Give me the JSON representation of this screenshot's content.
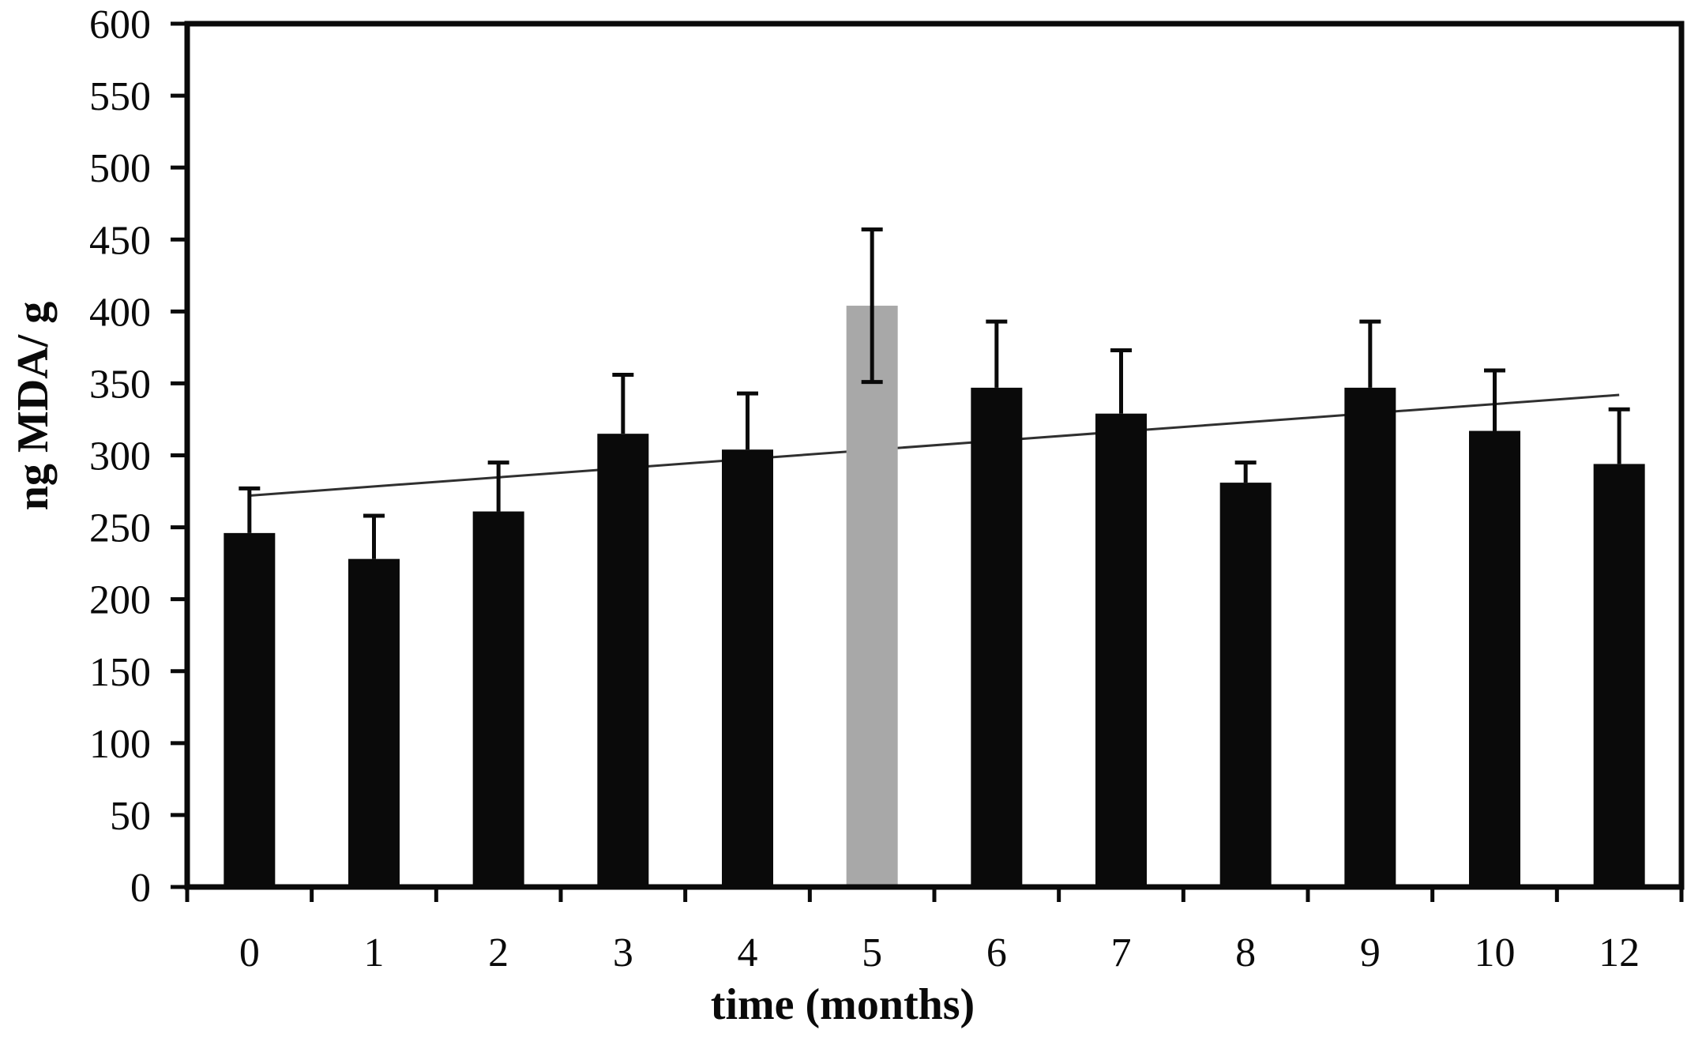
{
  "figure": {
    "background": "#ffffff"
  },
  "chart_data": {
    "type": "bar",
    "title": "",
    "xlabel": "time (months)",
    "ylabel": "ng MDA/ g",
    "categories": [
      "0",
      "1",
      "2",
      "3",
      "4",
      "5",
      "6",
      "7",
      "8",
      "9",
      "10",
      "12"
    ],
    "values": [
      246,
      228,
      261,
      315,
      304,
      404,
      347,
      329,
      281,
      347,
      317,
      294
    ],
    "errors": [
      31,
      30,
      34,
      41,
      39,
      53,
      46,
      44,
      14,
      46,
      42,
      38
    ],
    "bar_color": "#0a0a0a",
    "highlight": {
      "index": 5,
      "color": "#a8a8a8",
      "two_sided_error": true
    },
    "ylim": [
      0,
      600
    ],
    "ytick_step": 50,
    "ytick_labels": [
      "600",
      "550",
      "500",
      "450",
      "400",
      "350",
      "300",
      "250",
      "200",
      "150",
      "100",
      "50",
      "0"
    ],
    "grid": false,
    "legend": null,
    "trend_line": {
      "from_category_index": 0,
      "to_category_index": 11,
      "from_value": 272,
      "to_value": 342,
      "color": "#303030"
    },
    "frame_color": "#0a0a0a"
  }
}
